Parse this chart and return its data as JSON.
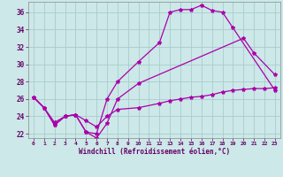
{
  "xlabel": "Windchill (Refroidissement éolien,°C)",
  "bg_color": "#cce8e8",
  "grid_color": "#aacccc",
  "line_color": "#aa00aa",
  "xlim": [
    -0.5,
    23.5
  ],
  "ylim": [
    21.5,
    37.2
  ],
  "yticks": [
    22,
    24,
    26,
    28,
    30,
    32,
    34,
    36
  ],
  "xticks": [
    0,
    1,
    2,
    3,
    4,
    5,
    6,
    7,
    8,
    9,
    10,
    11,
    12,
    13,
    14,
    15,
    16,
    17,
    18,
    19,
    20,
    21,
    22,
    23
  ],
  "line1_x": [
    0,
    1,
    2,
    3,
    4,
    5,
    6,
    7,
    8,
    10,
    12,
    13,
    14,
    15,
    16,
    17,
    18,
    19,
    23
  ],
  "line1_y": [
    26.2,
    25.0,
    23.0,
    24.0,
    24.2,
    22.2,
    22.0,
    26.0,
    28.0,
    30.3,
    32.5,
    36.0,
    36.3,
    36.3,
    36.8,
    36.2,
    36.0,
    34.2,
    27.0
  ],
  "line2_x": [
    0,
    1,
    2,
    3,
    4,
    5,
    6,
    7,
    8,
    10,
    20,
    21,
    23
  ],
  "line2_y": [
    26.2,
    25.0,
    23.0,
    24.0,
    24.2,
    22.2,
    21.5,
    23.2,
    26.0,
    27.8,
    33.0,
    31.3,
    28.8
  ],
  "line3_x": [
    0,
    1,
    2,
    3,
    4,
    5,
    6,
    7,
    8,
    10,
    12,
    13,
    14,
    15,
    16,
    17,
    18,
    19,
    20,
    21,
    22,
    23
  ],
  "line3_y": [
    26.2,
    25.0,
    23.3,
    24.0,
    24.2,
    23.5,
    22.8,
    24.0,
    24.8,
    25.0,
    25.5,
    25.8,
    26.0,
    26.2,
    26.3,
    26.5,
    26.8,
    27.0,
    27.1,
    27.2,
    27.2,
    27.3
  ]
}
